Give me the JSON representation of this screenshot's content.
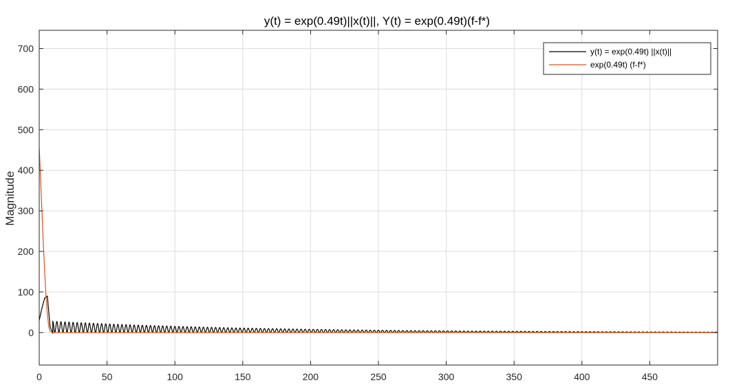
{
  "chart_data": {
    "type": "line",
    "title": "y(t) = exp(0.49t)||x(t)||, Y(t) = exp(0.49t)(f-f*)",
    "xlabel": "",
    "ylabel": "Magnitude",
    "xlim": [
      0,
      500
    ],
    "ylim": [
      -80,
      745
    ],
    "xticks": [
      0,
      50,
      100,
      150,
      200,
      250,
      300,
      350,
      400,
      450
    ],
    "yticks": [
      0,
      100,
      200,
      300,
      400,
      500,
      600,
      700
    ],
    "grid": true,
    "legend_position": "top-right",
    "series": [
      {
        "name": "y(t) = exp(0.49t) ||x(t)||",
        "color": "#000000",
        "style": "oscillating",
        "x": [
          0,
          2,
          4,
          6,
          8,
          10,
          500
        ],
        "y": [
          30,
          60,
          85,
          90,
          15,
          -2,
          0
        ],
        "oscillation": {
          "start": 10,
          "end": 500,
          "period": 3,
          "amplitude_start": 28,
          "amplitude_end": 1
        }
      },
      {
        "name": "exp(0.49t) (f-f*)",
        "color": "#D95319",
        "x": [
          0,
          1,
          2,
          3,
          4,
          5,
          6,
          7,
          8,
          10,
          15,
          20,
          50,
          100,
          200,
          500
        ],
        "y": [
          455,
          380,
          300,
          220,
          150,
          90,
          45,
          15,
          3,
          0,
          0,
          0,
          0,
          0,
          0,
          0
        ]
      }
    ]
  }
}
